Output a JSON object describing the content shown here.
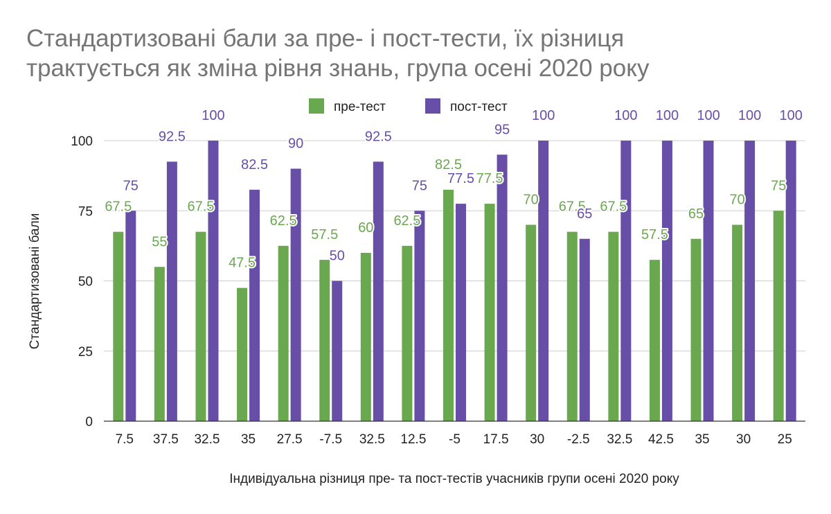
{
  "chart_data": {
    "type": "bar",
    "title_lines": [
      "Стандартизовані бали за пре- і пост-тести, їх різниця",
      "трактується як зміна рівня знань, група осені 2020 року"
    ],
    "xlabel": "Індивідуальна різниця пре- та пост-тестів учасників групи осені 2020 року",
    "ylabel": "Стандартизовані бали",
    "ylim": [
      0,
      100
    ],
    "yticks": [
      "0",
      "25",
      "50",
      "75",
      "100"
    ],
    "grid": true,
    "legend_position": "top",
    "categories": [
      "7.5",
      "37.5",
      "32.5",
      "35",
      "27.5",
      "-7.5",
      "32.5",
      "12.5",
      "-5",
      "17.5",
      "30",
      "-2.5",
      "32.5",
      "42.5",
      "35",
      "30",
      "25"
    ],
    "series": [
      {
        "name": "пре-тест",
        "color": "#6aa84f",
        "values": [
          67.5,
          55,
          67.5,
          47.5,
          62.5,
          57.5,
          60,
          62.5,
          82.5,
          77.5,
          70,
          67.5,
          67.5,
          57.5,
          65,
          70,
          75
        ]
      },
      {
        "name": "пост-тест",
        "color": "#674ea7",
        "values": [
          75,
          92.5,
          100,
          82.5,
          90,
          50,
          92.5,
          75,
          77.5,
          95,
          100,
          65,
          100,
          100,
          100,
          100,
          100
        ]
      }
    ]
  }
}
